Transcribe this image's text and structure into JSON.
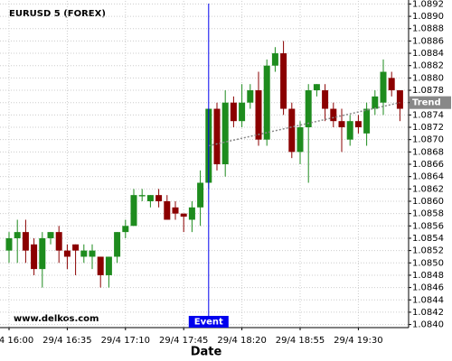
{
  "chart_data": {
    "type": "candlestick",
    "title": "EURUSD 5 (FOREX)",
    "watermark": "www.delkos.com",
    "x_label": "Date",
    "categories": [
      "29/4 16:00",
      null,
      null,
      null,
      null,
      null,
      null,
      "29/4 16:35",
      null,
      null,
      null,
      null,
      null,
      null,
      "29/4 17:10",
      null,
      null,
      null,
      null,
      null,
      null,
      "29/4 17:45",
      null,
      null,
      null,
      null,
      null,
      null,
      "29/4 18:20",
      null,
      null,
      null,
      null,
      null,
      null,
      "29/4 18:55",
      null,
      null,
      null,
      null,
      null,
      null,
      "29/4 19:30",
      null,
      null,
      null,
      null,
      null
    ],
    "open": [
      1.0852,
      1.0854,
      1.0855,
      1.0853,
      1.0849,
      1.0854,
      1.0855,
      1.0852,
      1.0853,
      1.0851,
      1.0851,
      1.0851,
      1.0848,
      1.0851,
      1.0855,
      1.0856,
      1.08608,
      1.086,
      1.0861,
      1.086,
      1.0859,
      1.0858,
      1.0857,
      1.0859,
      1.0863,
      1.0875,
      1.0866,
      1.0876,
      1.0873,
      1.0876,
      1.0878,
      1.087,
      1.0882,
      1.0884,
      1.0875,
      1.0868,
      1.0872,
      1.0878,
      1.0878,
      1.0875,
      1.0873,
      1.087,
      1.0873,
      1.0871,
      1.0875,
      1.0876,
      1.088,
      1.0878
    ],
    "high": [
      1.0855,
      1.0857,
      1.0857,
      1.0854,
      1.0855,
      1.0855,
      1.0856,
      1.0853,
      1.0853,
      1.0853,
      1.0853,
      1.0851,
      1.0851,
      1.0855,
      1.0857,
      1.0862,
      1.0862,
      1.0861,
      1.0862,
      1.0861,
      1.086,
      1.0858,
      1.086,
      1.0865,
      1.0875,
      1.0876,
      1.0878,
      1.0877,
      1.0879,
      1.0879,
      1.0881,
      1.0883,
      1.0885,
      1.0886,
      1.0876,
      1.0873,
      1.0879,
      1.0879,
      1.0879,
      1.0876,
      1.0875,
      1.0874,
      1.0874,
      1.0876,
      1.0878,
      1.0883,
      1.0881,
      1.0878
    ],
    "low": [
      1.085,
      1.085,
      1.085,
      1.0848,
      1.0846,
      1.0853,
      1.085,
      1.0849,
      1.0848,
      1.085,
      1.0849,
      1.0846,
      1.0846,
      1.085,
      1.0854,
      1.0856,
      1.086,
      1.0859,
      1.0859,
      1.0857,
      1.0857,
      1.0855,
      1.0855,
      1.0856,
      1.0862,
      1.0865,
      1.0864,
      1.0872,
      1.0872,
      1.0875,
      1.0869,
      1.0869,
      1.0881,
      1.0874,
      1.0867,
      1.0866,
      1.0863,
      1.0877,
      1.0873,
      1.0872,
      1.0868,
      1.0869,
      1.0871,
      1.0869,
      1.0874,
      1.0874,
      1.0877,
      1.0873
    ],
    "close": [
      1.0854,
      1.0855,
      1.0852,
      1.0849,
      1.0854,
      1.0855,
      1.0852,
      1.0851,
      1.0852,
      1.0852,
      1.0852,
      1.0848,
      1.0851,
      1.0855,
      1.0856,
      1.0861,
      1.0861,
      1.0861,
      1.086,
      1.0857,
      1.0858,
      1.08575,
      1.0859,
      1.0863,
      1.0875,
      1.0866,
      1.0876,
      1.0873,
      1.0876,
      1.0878,
      1.087,
      1.0882,
      1.0884,
      1.0875,
      1.0868,
      1.0872,
      1.0878,
      1.0879,
      1.0875,
      1.0873,
      1.0872,
      1.0873,
      1.0872,
      1.0875,
      1.0877,
      1.0881,
      1.0878,
      1.0875
    ],
    "up_color": "#1e8c1e",
    "down_color": "#8b0000",
    "event": {
      "label": "Event",
      "index": 24,
      "color": "#0000ee"
    },
    "trend": {
      "label": "Trend",
      "values": [
        1.0869,
        1.0876
      ],
      "color": "#888888"
    },
    "ylim": [
      1.08395,
      1.08925
    ],
    "yticks": [
      {
        "value": 1.084,
        "label": "1.0840"
      },
      1.0842,
      1.0844,
      1.0846,
      1.0848,
      {
        "value": 1.085,
        "label": "1.0850"
      },
      1.0852,
      1.0854,
      1.0856,
      1.0858,
      {
        "value": 1.086,
        "label": "1.0860"
      },
      1.0862,
      1.0864,
      1.0866,
      1.0868,
      {
        "value": 1.087,
        "label": "1.0870"
      },
      1.0872,
      1.0874,
      1.0876,
      1.0878,
      {
        "value": 1.088,
        "label": "1.0880"
      },
      1.0882,
      1.0884,
      1.0886,
      1.0888,
      {
        "value": 1.089,
        "label": "1.0890"
      },
      1.0892
    ],
    "grid": true
  }
}
